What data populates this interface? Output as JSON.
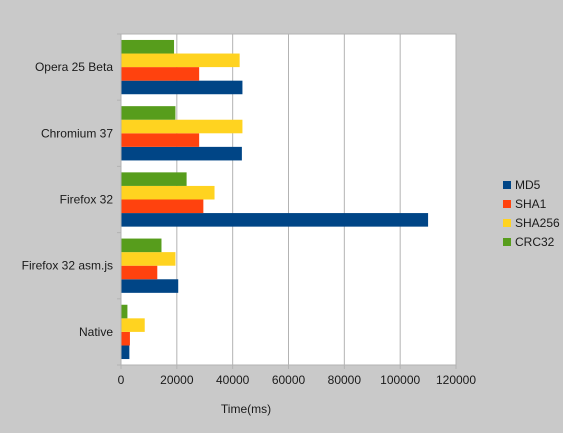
{
  "chart_data": {
    "type": "bar",
    "orientation": "horizontal",
    "categories": [
      "Opera 25 Beta",
      "Chromium 37",
      "Firefox 32",
      "Firefox 32 asm.js",
      "Native"
    ],
    "series": [
      {
        "name": "MD5",
        "color": "#004586",
        "values": [
          43500,
          43300,
          110000,
          20500,
          3000
        ]
      },
      {
        "name": "SHA1",
        "color": "#ff420e",
        "values": [
          28000,
          28000,
          29500,
          13000,
          3200
        ]
      },
      {
        "name": "SHA256",
        "color": "#ffd320",
        "values": [
          42500,
          43500,
          33500,
          19500,
          8500
        ]
      },
      {
        "name": "CRC32",
        "color": "#579d1c",
        "values": [
          19000,
          19500,
          23500,
          14500,
          2300
        ]
      }
    ],
    "xlabel": "Time(ms)",
    "ylabel": "",
    "title": "",
    "xlim": [
      0,
      120000
    ],
    "x_ticks": [
      "0",
      "20000",
      "40000",
      "60000",
      "80000",
      "100000",
      "120000"
    ],
    "grid": true,
    "legend_position": "right",
    "plot_background": "#ffffff",
    "page_background": "#c9c9c9",
    "grid_color": "#b3b3b3"
  }
}
